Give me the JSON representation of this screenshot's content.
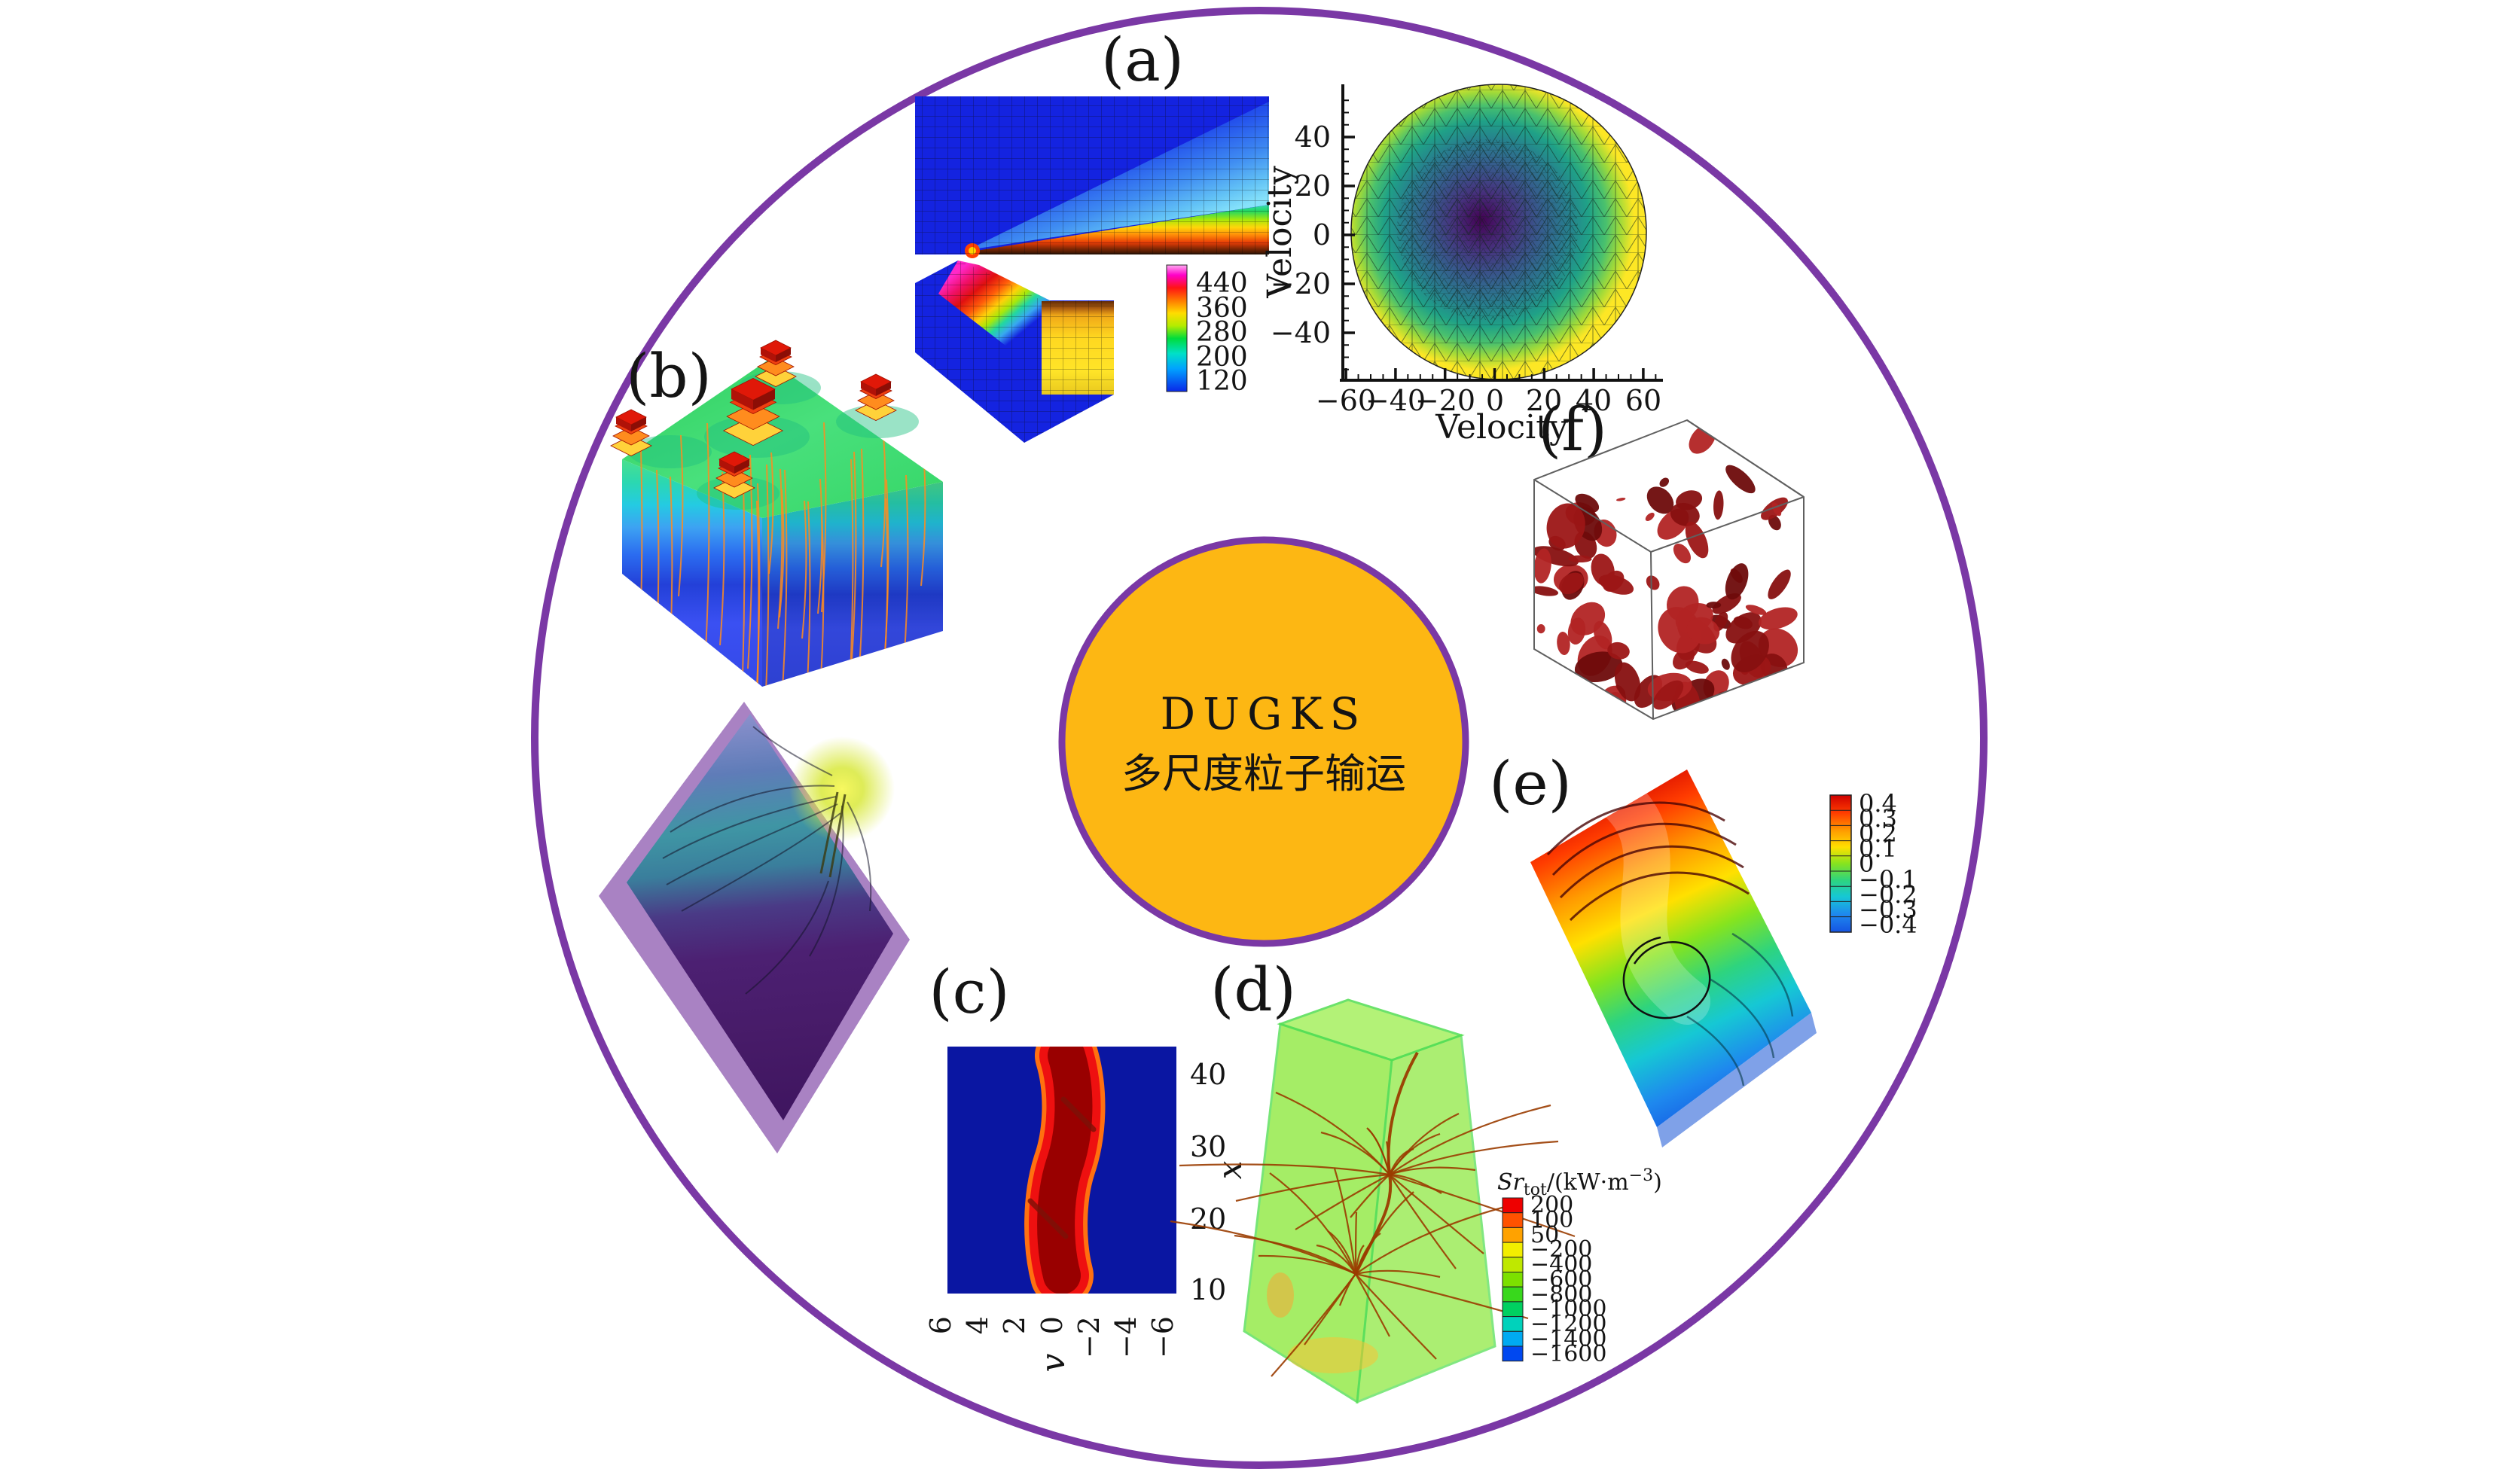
{
  "colors": {
    "outer_ring": "#7A38A5",
    "center_fill": "#FDB713",
    "center_border": "#7A38A5",
    "center_text": "#7A3A9D"
  },
  "center_badge": {
    "line1": "DUGKS",
    "line2": "多尺度粒子输运"
  },
  "panel_a": {
    "label": "(a)",
    "colorbar": {
      "ticks": [
        "440",
        "360",
        "280",
        "200",
        "120"
      ]
    }
  },
  "panel_vmesh": {
    "xlabel": "Velocity",
    "ylabel": "Velocity",
    "xticks": [
      "−60",
      "−40",
      "−20",
      "0",
      "20",
      "40",
      "60"
    ],
    "yticks": [
      "40",
      "20",
      "0",
      "−20",
      "−40"
    ]
  },
  "panel_b": {
    "label": "(b)"
  },
  "panel_c": {
    "label": "(c)",
    "xlabel": "v",
    "ylabel": "x",
    "xticks": [
      "6",
      "4",
      "2",
      "0",
      "−2",
      "−4",
      "−6"
    ],
    "yticks": [
      "40",
      "30",
      "20",
      "10"
    ]
  },
  "panel_d": {
    "label": "(d)",
    "colorbar_title": {
      "main": "Sr",
      "sub": "tot",
      "mid": "/(kW·m",
      "sup": "−3",
      "close": ")"
    },
    "colorbar_ticks": [
      "200",
      "100",
      "50",
      "−200",
      "−400",
      "−600",
      "−800",
      "−1000",
      "−1200",
      "−1400",
      "−1600"
    ],
    "colorbar_colors": [
      "#ee0000",
      "#ff5200",
      "#ffa200",
      "#f2ee00",
      "#bfe800",
      "#7ce000",
      "#38d81c",
      "#00d060",
      "#00d2bb",
      "#00aaf2",
      "#0048f0"
    ]
  },
  "panel_e": {
    "label": "(e)",
    "colorbar_ticks": [
      "0.4",
      "0.3",
      "0.2",
      "0.1",
      "0",
      "−0.1",
      "−0.2",
      "−0.3",
      "−0.4"
    ]
  },
  "panel_f": {
    "label": "(f)"
  },
  "decor": {
    "f_blobs": {
      "count": 90,
      "colors": [
        "#6e0b0b",
        "#871010",
        "#9c1616",
        "#b22424"
      ]
    },
    "b_streamlines": {
      "count": 28,
      "color": "#ff8c1e"
    },
    "d_streamlines": {
      "hubs": [
        [
          1845,
          1560
        ],
        [
          1800,
          1692
        ]
      ],
      "rays_per_hub": 19,
      "color": "#9a3c00"
    }
  },
  "chart_data": [
    {
      "panel": "a",
      "type": "heatmap",
      "content": "adaptive quadrilateral mesh around a sharp flat plate colored by temperature",
      "colorbar": {
        "ticks": [
          440,
          360,
          280,
          200,
          120
        ]
      }
    },
    {
      "panel": "a-velocity-space",
      "type": "heatmap",
      "content": "circular triangular velocity-space mesh, refined toward center",
      "xlabel": "Velocity",
      "ylabel": "Velocity",
      "xticks": [
        -60,
        -40,
        -20,
        0,
        20,
        40,
        60
      ],
      "yticks": [
        40,
        20,
        0,
        -20,
        -40
      ],
      "xlim": [
        -65,
        68
      ],
      "ylim": [
        -60,
        60
      ],
      "grid": false,
      "legend_position": "none"
    },
    {
      "panel": "c",
      "type": "heatmap",
      "content": "phase-space distribution, dark blue background with red filament",
      "xlabel": "v",
      "ylabel": "x",
      "xticks": [
        6,
        4,
        2,
        0,
        -2,
        -4,
        -6
      ],
      "yticks": [
        40,
        30,
        20,
        10
      ]
    },
    {
      "panel": "d",
      "type": "3d-streamlines",
      "content": "translucent green box with dark-red streamlines",
      "colorbar": {
        "label": "Sr_tot/(kW·m^-3)",
        "ticks": [
          200,
          100,
          50,
          -200,
          -400,
          -600,
          -800,
          -1000,
          -1200,
          -1400,
          -1600
        ]
      }
    },
    {
      "panel": "e",
      "type": "3d-surface-streamlines",
      "content": "cavity flow surface, rainbow colormap with streamlines",
      "colorbar": {
        "ticks": [
          0.4,
          0.3,
          0.2,
          0.1,
          0,
          -0.1,
          -0.2,
          -0.3,
          -0.4
        ]
      }
    },
    {
      "panel": "f",
      "type": "3d-isosurface",
      "content": "dark red turbulence vortex isosurfaces inside wireframe cube"
    },
    {
      "panel": "b",
      "type": "3d-isosurface",
      "content": "stacked thermal iso-layers (blue to green) with five red chip towers and orange vertical streamlines"
    }
  ]
}
